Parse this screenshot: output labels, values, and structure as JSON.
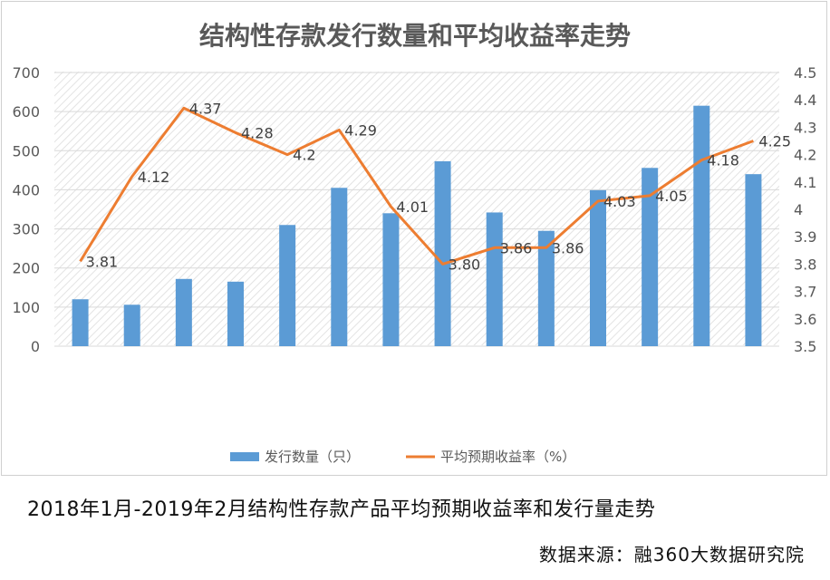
{
  "chart_data": {
    "type": "bar+line",
    "title": "结构性存款发行数量和平均收益率走势",
    "categories": [
      "",
      "",
      "",
      "",
      "",
      "",
      "",
      "",
      "",
      "",
      "",
      "",
      "",
      ""
    ],
    "series": [
      {
        "name": "发行数量（只）",
        "type": "bar",
        "axis": "left",
        "color": "#5b9bd5",
        "values": [
          120,
          106,
          172,
          165,
          310,
          405,
          340,
          473,
          342,
          295,
          399,
          456,
          615,
          440
        ]
      },
      {
        "name": "平均预期收益率（%）",
        "type": "line",
        "axis": "right",
        "color": "#ed7d31",
        "values": [
          3.81,
          4.12,
          4.37,
          4.28,
          4.2,
          4.29,
          4.01,
          3.8,
          3.86,
          3.86,
          4.03,
          4.05,
          4.18,
          4.25
        ],
        "labels": [
          "3.81",
          "4.12",
          "4.37",
          "4.28",
          "4.2",
          "4.29",
          "4.01",
          "3.80",
          "3.86",
          "3.86",
          "4.03",
          "4.05",
          "4.18",
          "4.25"
        ]
      }
    ],
    "y_left": {
      "min": 0,
      "max": 700,
      "ticks": [
        "0",
        "100",
        "200",
        "300",
        "400",
        "500",
        "600",
        "700"
      ]
    },
    "y_right": {
      "min": 3.5,
      "max": 4.5,
      "ticks": [
        "3.5",
        "3.6",
        "3.7",
        "3.8",
        "3.9",
        "4",
        "4.1",
        "4.2",
        "4.3",
        "4.4",
        "4.5"
      ]
    },
    "grid": true,
    "legend_position": "bottom",
    "colors": {
      "title": "#595959",
      "axis_text": "#595959",
      "grid": "#d9d9d9"
    }
  },
  "captions": {
    "main": "2018年1月-2019年2月结构性存款产品平均预期收益率和发行量走势",
    "source": "数据来源：融360大数据研究院"
  }
}
